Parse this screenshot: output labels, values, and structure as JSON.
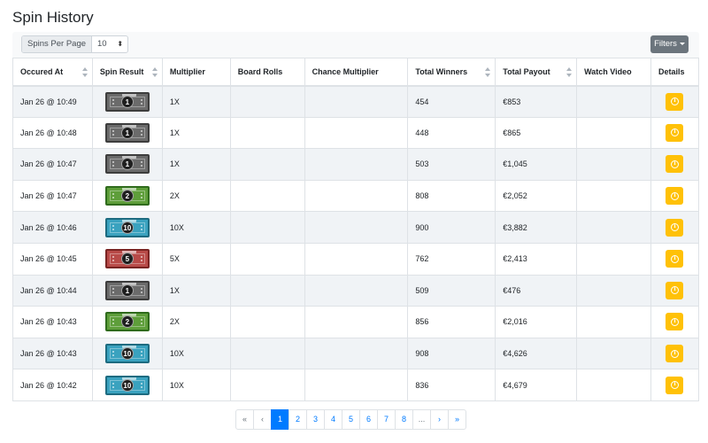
{
  "title": "Spin History",
  "toolbar": {
    "per_page_label": "Spins Per Page",
    "per_page_value": "10",
    "filters_label": "Filters"
  },
  "columns": [
    "Occured At",
    "Spin Result",
    "Multiplier",
    "Board Rolls",
    "Chance Multiplier",
    "Total Winners",
    "Total Payout",
    "Watch Video",
    "Details"
  ],
  "bill_colors": {
    "1": {
      "bg": "#6b6b6b",
      "border": "#3d3d3d"
    },
    "2": {
      "bg": "#5e9e3a",
      "border": "#2f6b1c"
    },
    "5": {
      "bg": "#b84a48",
      "border": "#7a2423"
    },
    "10": {
      "bg": "#3aa2bf",
      "border": "#1d6b80"
    }
  },
  "rows": [
    {
      "occured_at": "Jan 26 @ 10:49",
      "spin_result": "1",
      "multiplier": "1X",
      "board_rolls": "",
      "chance_multiplier": "",
      "total_winners": "454",
      "total_payout": "€853",
      "watch_video": ""
    },
    {
      "occured_at": "Jan 26 @ 10:48",
      "spin_result": "1",
      "multiplier": "1X",
      "board_rolls": "",
      "chance_multiplier": "",
      "total_winners": "448",
      "total_payout": "€865",
      "watch_video": ""
    },
    {
      "occured_at": "Jan 26 @ 10:47",
      "spin_result": "1",
      "multiplier": "1X",
      "board_rolls": "",
      "chance_multiplier": "",
      "total_winners": "503",
      "total_payout": "€1,045",
      "watch_video": ""
    },
    {
      "occured_at": "Jan 26 @ 10:47",
      "spin_result": "2",
      "multiplier": "2X",
      "board_rolls": "",
      "chance_multiplier": "",
      "total_winners": "808",
      "total_payout": "€2,052",
      "watch_video": ""
    },
    {
      "occured_at": "Jan 26 @ 10:46",
      "spin_result": "10",
      "multiplier": "10X",
      "board_rolls": "",
      "chance_multiplier": "",
      "total_winners": "900",
      "total_payout": "€3,882",
      "watch_video": ""
    },
    {
      "occured_at": "Jan 26 @ 10:45",
      "spin_result": "5",
      "multiplier": "5X",
      "board_rolls": "",
      "chance_multiplier": "",
      "total_winners": "762",
      "total_payout": "€2,413",
      "watch_video": ""
    },
    {
      "occured_at": "Jan 26 @ 10:44",
      "spin_result": "1",
      "multiplier": "1X",
      "board_rolls": "",
      "chance_multiplier": "",
      "total_winners": "509",
      "total_payout": "€476",
      "watch_video": ""
    },
    {
      "occured_at": "Jan 26 @ 10:43",
      "spin_result": "2",
      "multiplier": "2X",
      "board_rolls": "",
      "chance_multiplier": "",
      "total_winners": "856",
      "total_payout": "€2,016",
      "watch_video": ""
    },
    {
      "occured_at": "Jan 26 @ 10:43",
      "spin_result": "10",
      "multiplier": "10X",
      "board_rolls": "",
      "chance_multiplier": "",
      "total_winners": "908",
      "total_payout": "€4,626",
      "watch_video": ""
    },
    {
      "occured_at": "Jan 26 @ 10:42",
      "spin_result": "10",
      "multiplier": "10X",
      "board_rolls": "",
      "chance_multiplier": "",
      "total_winners": "836",
      "total_payout": "€4,679",
      "watch_video": ""
    }
  ],
  "pagination": {
    "items": [
      "«",
      "‹",
      "1",
      "2",
      "3",
      "4",
      "5",
      "6",
      "7",
      "8",
      "...",
      "›",
      "»"
    ],
    "active": "1"
  }
}
